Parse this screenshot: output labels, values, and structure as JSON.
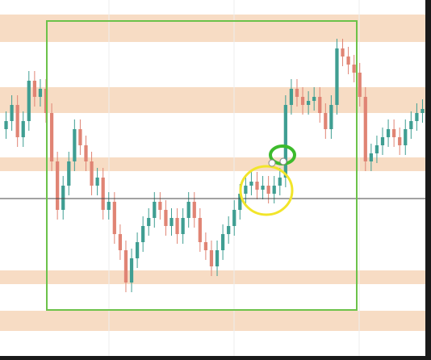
{
  "chart_data": {
    "type": "candlestick",
    "up_color": "#3f9e92",
    "down_color": "#e08474",
    "ylim": [
      0,
      446
    ],
    "open": [
      286,
      296,
      316,
      276,
      296,
      346,
      326,
      336,
      306,
      246,
      186,
      216,
      246,
      286,
      266,
      246,
      216,
      226,
      186,
      196,
      156,
      136,
      96,
      126,
      146,
      166,
      176,
      196,
      186,
      166,
      176,
      156,
      176,
      196,
      176,
      146,
      136,
      116,
      136,
      156,
      166,
      186,
      206,
      216,
      221,
      211,
      216,
      206,
      216,
      226,
      316,
      336,
      326,
      316,
      321,
      326,
      306,
      286,
      316,
      386,
      376,
      366,
      356,
      326,
      246,
      256,
      266,
      276,
      286,
      276,
      266,
      286,
      296,
      306
    ],
    "high": [
      308,
      328,
      328,
      308,
      358,
      358,
      348,
      348,
      318,
      258,
      228,
      258,
      298,
      298,
      278,
      258,
      238,
      238,
      208,
      208,
      168,
      148,
      138,
      158,
      178,
      188,
      208,
      208,
      198,
      188,
      188,
      188,
      208,
      208,
      188,
      158,
      148,
      148,
      168,
      178,
      198,
      218,
      228,
      233,
      233,
      228,
      228,
      228,
      238,
      328,
      348,
      348,
      338,
      333,
      338,
      338,
      318,
      328,
      398,
      398,
      388,
      378,
      368,
      338,
      268,
      278,
      288,
      298,
      298,
      288,
      298,
      308,
      318,
      323
    ],
    "low": [
      274,
      284,
      264,
      264,
      284,
      314,
      314,
      294,
      234,
      174,
      174,
      204,
      234,
      254,
      234,
      204,
      204,
      174,
      174,
      144,
      124,
      84,
      84,
      114,
      134,
      154,
      164,
      174,
      154,
      154,
      144,
      144,
      164,
      164,
      134,
      124,
      104,
      104,
      124,
      144,
      154,
      174,
      194,
      204,
      199,
      199,
      194,
      194,
      204,
      214,
      304,
      314,
      304,
      304,
      309,
      294,
      274,
      274,
      304,
      364,
      354,
      344,
      314,
      234,
      234,
      244,
      254,
      264,
      264,
      254,
      254,
      274,
      284,
      294
    ],
    "close": [
      296,
      316,
      276,
      296,
      346,
      326,
      336,
      306,
      246,
      186,
      216,
      246,
      286,
      266,
      246,
      216,
      226,
      186,
      196,
      156,
      136,
      96,
      126,
      146,
      166,
      176,
      196,
      186,
      166,
      176,
      156,
      176,
      196,
      176,
      146,
      136,
      116,
      136,
      156,
      166,
      186,
      206,
      216,
      221,
      211,
      216,
      206,
      216,
      226,
      316,
      336,
      326,
      316,
      321,
      326,
      306,
      286,
      316,
      386,
      376,
      366,
      356,
      326,
      246,
      256,
      266,
      276,
      286,
      276,
      266,
      286,
      296,
      306,
      311
    ]
  }
}
